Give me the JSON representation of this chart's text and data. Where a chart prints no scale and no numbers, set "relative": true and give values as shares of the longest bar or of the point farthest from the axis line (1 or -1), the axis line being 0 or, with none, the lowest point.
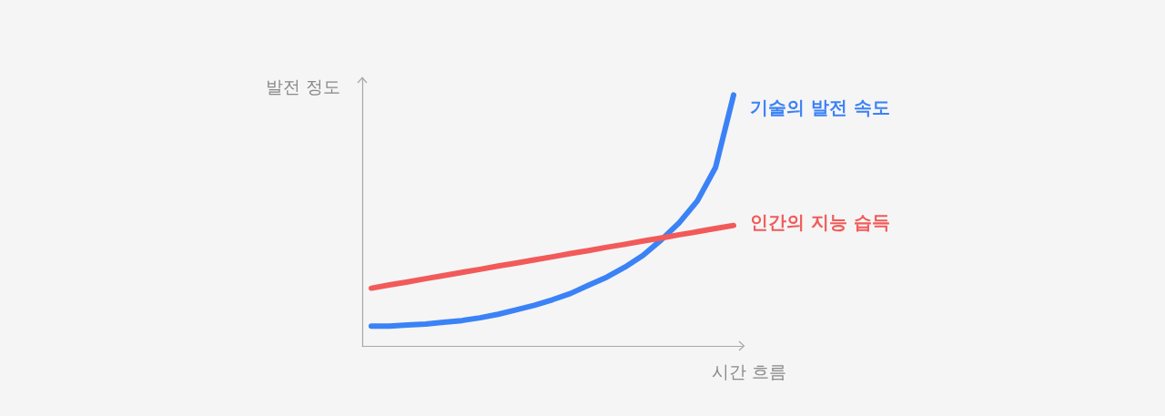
{
  "chart_data": {
    "type": "line",
    "relative": true,
    "xlabel": "시간 흐름",
    "ylabel": "발전 정도",
    "categories": [
      null,
      null,
      null,
      null,
      null,
      null,
      null,
      null,
      null,
      null,
      null,
      null,
      null,
      null,
      null,
      null,
      null,
      null,
      null,
      null,
      null
    ],
    "legend": false,
    "grid": false,
    "marker": "none",
    "line_style": "solid",
    "series": [
      {
        "name": "기술의 발전 속도",
        "color": "#3b82f6",
        "values": [
          0.079,
          0.079,
          0.083,
          0.087,
          0.094,
          0.101,
          0.112,
          0.126,
          0.144,
          0.162,
          0.184,
          0.209,
          0.242,
          0.274,
          0.314,
          0.361,
          0.422,
          0.491,
          0.578,
          0.711,
          1
        ]
      },
      {
        "name": "인간의 지능 습득",
        "color": "#f25a5a",
        "values": [
          0.23,
          0.243,
          0.255,
          0.268,
          0.28,
          0.293,
          0.305,
          0.318,
          0.33,
          0.343,
          0.355,
          0.368,
          0.38,
          0.393,
          0.405,
          0.418,
          0.43,
          0.443,
          0.455,
          0.468,
          0.48
        ]
      }
    ]
  }
}
